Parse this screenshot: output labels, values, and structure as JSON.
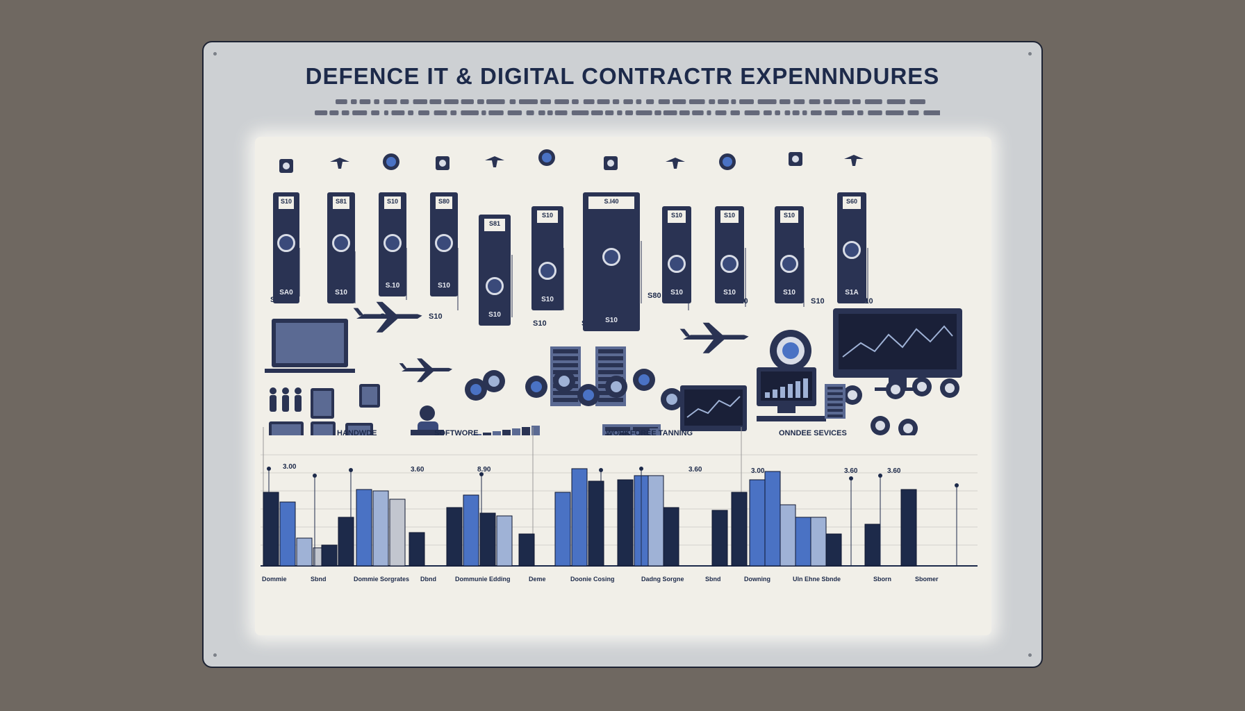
{
  "header": {
    "title": "DEFENCE IT & DIGITAL CONTRACTR EXPENNNDURES"
  },
  "colors": {
    "navy": "#1d2a4a",
    "card": "#2a3353",
    "blue": "#4a72c4",
    "lightblue": "#9fb2d6",
    "gray": "#c2c6cf"
  },
  "cards": [
    {
      "lbl": "S10",
      "val": "SA0"
    },
    {
      "lbl": "S81",
      "val": "S10"
    },
    {
      "lbl": "S10",
      "val": "S.10"
    },
    {
      "lbl": "S80",
      "val": "S10"
    },
    {
      "lbl": "S81",
      "val": "S10"
    },
    {
      "lbl": "S10",
      "val": "S10"
    },
    {
      "lbl": "S.I40",
      "val": "S10"
    },
    {
      "lbl": "S10",
      "val": "S10"
    },
    {
      "lbl": "S10",
      "val": "S10"
    },
    {
      "lbl": "S10",
      "val": "S10"
    },
    {
      "lbl": "S60",
      "val": "S1A"
    }
  ],
  "floating_values": [
    "S10",
    "S10",
    "S10",
    "S10",
    "S10",
    "S10",
    "S80",
    "S10",
    "S10",
    "S10"
  ],
  "chart_data": {
    "type": "bar",
    "sections": [
      "HANDWDE",
      "SOFTWORE",
      "WORKFOREE TANNING",
      "ONNDEE SEVICES"
    ],
    "labels": [
      "3.00",
      "3.60",
      "8.90",
      "3.60",
      "3.00",
      "3.60",
      "3.60"
    ],
    "categories": [
      "Dommie",
      "Sbnd",
      "Dommie Sorgrates",
      "Dbnd",
      "Dommunie Edding",
      "Deme",
      "Doonie Cosing",
      "Dadng Sorgne",
      "Sbnd",
      "Downing",
      "Uln Ehne Sbnde",
      "Sborn",
      "Sbomer"
    ]
  }
}
